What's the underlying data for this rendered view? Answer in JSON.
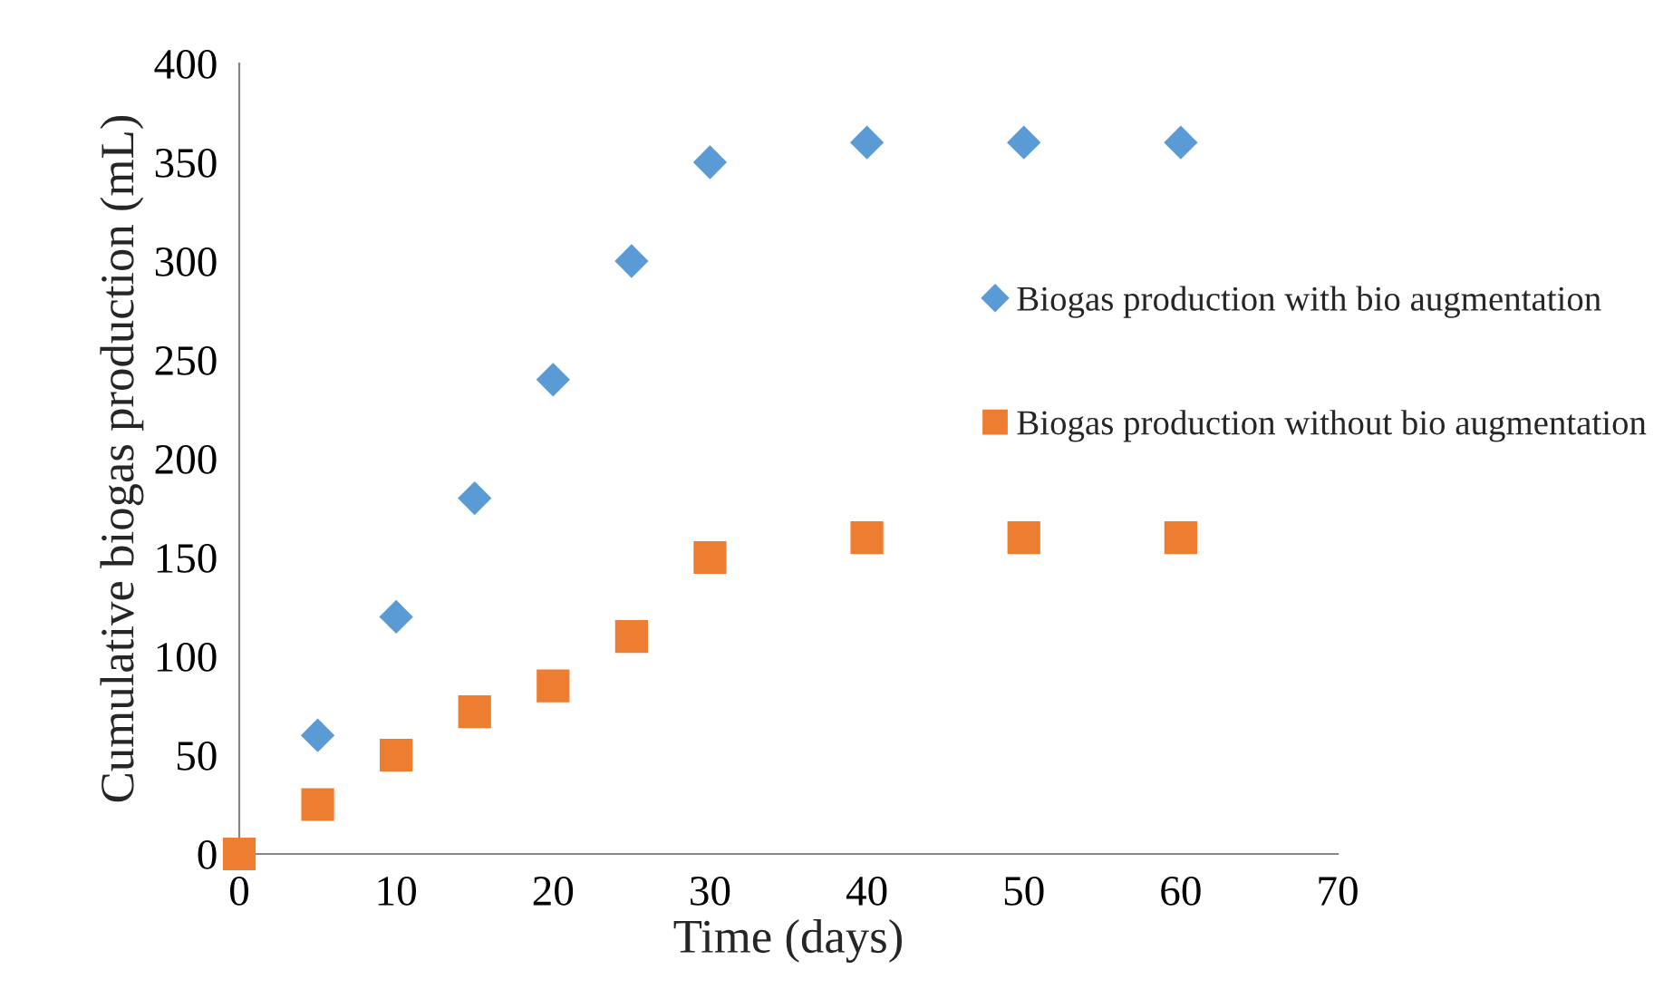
{
  "chart_data": {
    "type": "scatter",
    "xlabel": "Time (days)",
    "ylabel": "Cumulative biogas production (mL)",
    "series": [
      {
        "name": "Biogas production with bio augmentation",
        "color": "#5b9bd5",
        "marker": "diamond",
        "x": [
          5,
          10,
          15,
          20,
          25,
          30,
          40,
          50,
          60
        ],
        "values": [
          60,
          120,
          180,
          240,
          300,
          350,
          360,
          360,
          360
        ]
      },
      {
        "name": "Biogas production without bio augmentation",
        "color": "#ed7d31",
        "marker": "square",
        "x": [
          0,
          5,
          10,
          15,
          20,
          25,
          30,
          40,
          50,
          60
        ],
        "values": [
          0,
          25,
          50,
          72,
          85,
          110,
          150,
          160,
          160,
          160
        ]
      }
    ],
    "xlim": [
      0,
      70
    ],
    "xticks": [
      0,
      10,
      20,
      30,
      40,
      50,
      60,
      70
    ],
    "ylim": [
      0,
      400
    ],
    "yticks": [
      0,
      50,
      100,
      150,
      200,
      250,
      300,
      350,
      400
    ],
    "grid": false,
    "legend": "right"
  }
}
